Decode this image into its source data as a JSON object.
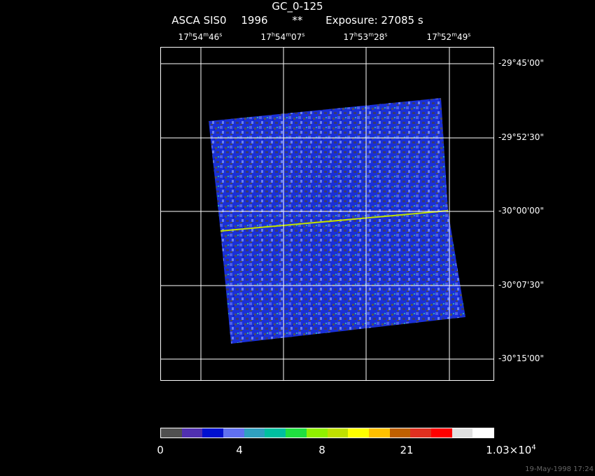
{
  "header": {
    "title": "GC_0-125",
    "instrument": "ASCA SIS0",
    "year": "1996",
    "marker": "**",
    "exposure": "Exposure: 27085 s"
  },
  "ra_ticks": [
    {
      "h": "17",
      "m": "54",
      "s": "46",
      "data_name": "ra-tick-label-1"
    },
    {
      "h": "17",
      "m": "54",
      "s": "07",
      "data_name": "ra-tick-label-2"
    },
    {
      "h": "17",
      "m": "53",
      "s": "28",
      "data_name": "ra-tick-label-3"
    },
    {
      "h": "17",
      "m": "52",
      "s": "49",
      "data_name": "ra-tick-label-4"
    }
  ],
  "dec_ticks": [
    "-29°45'00\"",
    "-29°52'30\"",
    "-30°00'00\"",
    "-30°07'30\"",
    "-30°15'00\""
  ],
  "colorbar": {
    "colors": [
      "#505050",
      "#5030b0",
      "#0010d0",
      "#6070f0",
      "#30a0c0",
      "#00c0a0",
      "#20e040",
      "#90f000",
      "#c0e000",
      "#ffff00",
      "#ffc000",
      "#c06000",
      "#e03020",
      "#ff0000",
      "#e0e0e0",
      "#ffffff"
    ],
    "labels": {
      "l0": "0",
      "l1": "4",
      "l2": "8",
      "l3": "21",
      "l4_base": "1.03×10",
      "l4_exp": "4"
    }
  },
  "footer": {
    "date": "19-May-1998 17:24"
  }
}
